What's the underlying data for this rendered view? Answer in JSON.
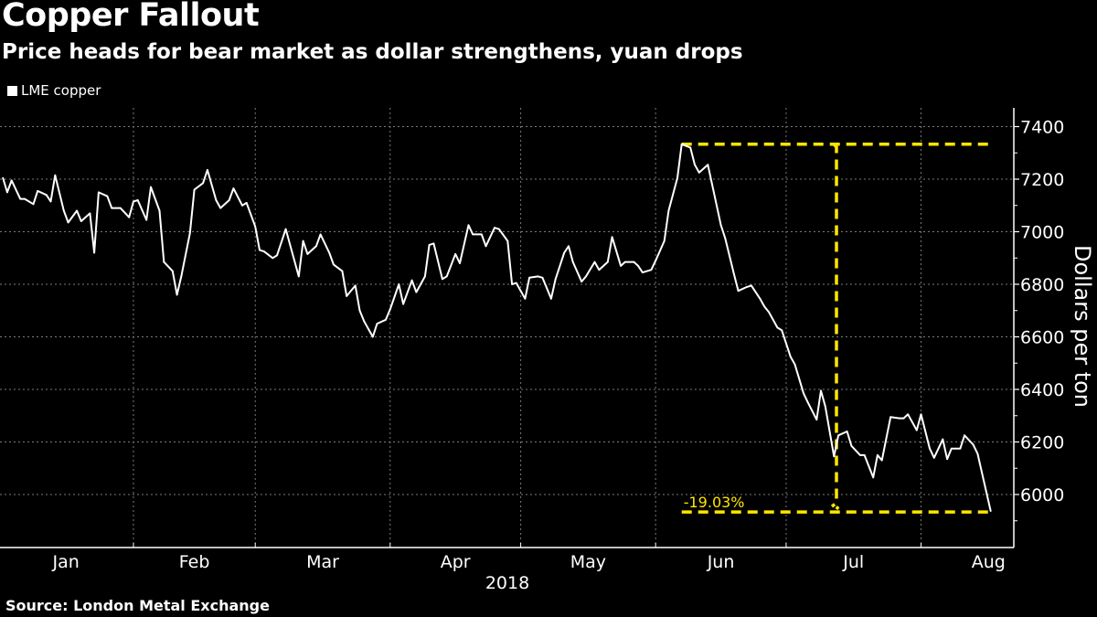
{
  "title": "Copper Fallout",
  "subtitle": "Price heads for bear market as dollar strengthens, yuan drops",
  "source": "Source: London Metal Exchange",
  "colors": {
    "background": "#000000",
    "line": "#ffffff",
    "annotation": "#ffe600",
    "grid": "#7a7a7a"
  },
  "chart_data": {
    "type": "line",
    "title": "Copper Fallout",
    "subtitle": "Price heads for bear market as dollar strengthens, yuan drops",
    "ylabel": "Dollars per ton",
    "xlabel": "2018",
    "ylim": [
      5800,
      7470
    ],
    "xlim": [
      "2018-01-01",
      "2018-08-22"
    ],
    "y_axis_position": "right",
    "yticks": [
      6000,
      6200,
      6400,
      6600,
      6800,
      7000,
      7200,
      7400
    ],
    "xtick_labels": [
      "Jan",
      "Feb",
      "Mar",
      "Apr",
      "May",
      "Jun",
      "Jul",
      "Aug"
    ],
    "grid": true,
    "legend_position": "top-left",
    "series": [
      {
        "name": "LME copper",
        "points": [
          [
            "2018-01-02",
            7205
          ],
          [
            "2018-01-03",
            7150
          ],
          [
            "2018-01-04",
            7195
          ],
          [
            "2018-01-06",
            7125
          ],
          [
            "2018-01-07",
            7125
          ],
          [
            "2018-01-09",
            7105
          ],
          [
            "2018-01-10",
            7155
          ],
          [
            "2018-01-12",
            7140
          ],
          [
            "2018-01-13",
            7115
          ],
          [
            "2018-01-14",
            7215
          ],
          [
            "2018-01-16",
            7080
          ],
          [
            "2018-01-17",
            7035
          ],
          [
            "2018-01-19",
            7080
          ],
          [
            "2018-01-20",
            7040
          ],
          [
            "2018-01-22",
            7070
          ],
          [
            "2018-01-23",
            6920
          ],
          [
            "2018-01-24",
            7150
          ],
          [
            "2018-01-26",
            7135
          ],
          [
            "2018-01-27",
            7090
          ],
          [
            "2018-01-29",
            7090
          ],
          [
            "2018-01-31",
            7055
          ],
          [
            "2018-02-01",
            7115
          ],
          [
            "2018-02-02",
            7120
          ],
          [
            "2018-02-04",
            7045
          ],
          [
            "2018-02-05",
            7170
          ],
          [
            "2018-02-07",
            7080
          ],
          [
            "2018-02-08",
            6885
          ],
          [
            "2018-02-10",
            6850
          ],
          [
            "2018-02-11",
            6760
          ],
          [
            "2018-02-12",
            6830
          ],
          [
            "2018-02-14",
            6995
          ],
          [
            "2018-02-15",
            7160
          ],
          [
            "2018-02-17",
            7185
          ],
          [
            "2018-02-18",
            7235
          ],
          [
            "2018-02-20",
            7120
          ],
          [
            "2018-02-21",
            7090
          ],
          [
            "2018-02-23",
            7120
          ],
          [
            "2018-02-24",
            7165
          ],
          [
            "2018-02-26",
            7100
          ],
          [
            "2018-02-27",
            7110
          ],
          [
            "2018-03-01",
            7020
          ],
          [
            "2018-03-02",
            6930
          ],
          [
            "2018-03-03",
            6925
          ],
          [
            "2018-03-05",
            6900
          ],
          [
            "2018-03-06",
            6910
          ],
          [
            "2018-03-08",
            7010
          ],
          [
            "2018-03-09",
            6950
          ],
          [
            "2018-03-11",
            6830
          ],
          [
            "2018-03-12",
            6965
          ],
          [
            "2018-03-13",
            6915
          ],
          [
            "2018-03-15",
            6945
          ],
          [
            "2018-03-16",
            6990
          ],
          [
            "2018-03-18",
            6920
          ],
          [
            "2018-03-19",
            6875
          ],
          [
            "2018-03-21",
            6850
          ],
          [
            "2018-03-22",
            6755
          ],
          [
            "2018-03-24",
            6795
          ],
          [
            "2018-03-25",
            6700
          ],
          [
            "2018-03-26",
            6660
          ],
          [
            "2018-03-28",
            6600
          ],
          [
            "2018-03-29",
            6650
          ],
          [
            "2018-03-31",
            6665
          ],
          [
            "2018-04-01",
            6705
          ],
          [
            "2018-04-03",
            6800
          ],
          [
            "2018-04-04",
            6725
          ],
          [
            "2018-04-06",
            6815
          ],
          [
            "2018-04-07",
            6770
          ],
          [
            "2018-04-09",
            6830
          ],
          [
            "2018-04-10",
            6950
          ],
          [
            "2018-04-11",
            6955
          ],
          [
            "2018-04-13",
            6820
          ],
          [
            "2018-04-14",
            6830
          ],
          [
            "2018-04-16",
            6915
          ],
          [
            "2018-04-17",
            6880
          ],
          [
            "2018-04-19",
            7025
          ],
          [
            "2018-04-20",
            6990
          ],
          [
            "2018-04-22",
            6990
          ],
          [
            "2018-04-23",
            6945
          ],
          [
            "2018-04-25",
            7015
          ],
          [
            "2018-04-26",
            7010
          ],
          [
            "2018-04-28",
            6965
          ],
          [
            "2018-04-29",
            6800
          ],
          [
            "2018-04-30",
            6805
          ],
          [
            "2018-05-02",
            6745
          ],
          [
            "2018-05-03",
            6825
          ],
          [
            "2018-05-05",
            6830
          ],
          [
            "2018-05-06",
            6825
          ],
          [
            "2018-05-08",
            6745
          ],
          [
            "2018-05-09",
            6820
          ],
          [
            "2018-05-11",
            6920
          ],
          [
            "2018-05-12",
            6945
          ],
          [
            "2018-05-13",
            6885
          ],
          [
            "2018-05-15",
            6810
          ],
          [
            "2018-05-16",
            6830
          ],
          [
            "2018-05-18",
            6885
          ],
          [
            "2018-05-19",
            6855
          ],
          [
            "2018-05-21",
            6885
          ],
          [
            "2018-05-22",
            6980
          ],
          [
            "2018-05-24",
            6870
          ],
          [
            "2018-05-25",
            6885
          ],
          [
            "2018-05-27",
            6885
          ],
          [
            "2018-05-28",
            6870
          ],
          [
            "2018-05-29",
            6845
          ],
          [
            "2018-05-31",
            6855
          ],
          [
            "2018-06-01",
            6890
          ],
          [
            "2018-06-03",
            6965
          ],
          [
            "2018-06-04",
            7080
          ],
          [
            "2018-06-06",
            7205
          ],
          [
            "2018-06-07",
            7333
          ],
          [
            "2018-06-09",
            7320
          ],
          [
            "2018-06-10",
            7255
          ],
          [
            "2018-06-11",
            7225
          ],
          [
            "2018-06-13",
            7255
          ],
          [
            "2018-06-14",
            7180
          ],
          [
            "2018-06-16",
            7025
          ],
          [
            "2018-06-17",
            6975
          ],
          [
            "2018-06-19",
            6840
          ],
          [
            "2018-06-20",
            6775
          ],
          [
            "2018-06-22",
            6790
          ],
          [
            "2018-06-23",
            6795
          ],
          [
            "2018-06-25",
            6745
          ],
          [
            "2018-06-26",
            6715
          ],
          [
            "2018-06-27",
            6695
          ],
          [
            "2018-06-29",
            6635
          ],
          [
            "2018-06-30",
            6625
          ],
          [
            "2018-07-02",
            6525
          ],
          [
            "2018-07-03",
            6495
          ],
          [
            "2018-07-05",
            6385
          ],
          [
            "2018-07-06",
            6350
          ],
          [
            "2018-07-08",
            6285
          ],
          [
            "2018-07-09",
            6395
          ],
          [
            "2018-07-10",
            6335
          ],
          [
            "2018-07-12",
            6145
          ],
          [
            "2018-07-13",
            6225
          ],
          [
            "2018-07-15",
            6240
          ],
          [
            "2018-07-16",
            6185
          ],
          [
            "2018-07-18",
            6150
          ],
          [
            "2018-07-19",
            6150
          ],
          [
            "2018-07-21",
            6065
          ],
          [
            "2018-07-22",
            6150
          ],
          [
            "2018-07-23",
            6130
          ],
          [
            "2018-07-25",
            6295
          ],
          [
            "2018-07-27",
            6290
          ],
          [
            "2018-07-28",
            6290
          ],
          [
            "2018-07-29",
            6305
          ],
          [
            "2018-07-31",
            6245
          ],
          [
            "2018-08-01",
            6305
          ],
          [
            "2018-08-03",
            6175
          ],
          [
            "2018-08-04",
            6140
          ],
          [
            "2018-08-06",
            6210
          ],
          [
            "2018-08-07",
            6135
          ],
          [
            "2018-08-08",
            6175
          ],
          [
            "2018-08-10",
            6175
          ],
          [
            "2018-08-11",
            6225
          ],
          [
            "2018-08-13",
            6190
          ],
          [
            "2018-08-14",
            6155
          ],
          [
            "2018-08-17",
            5937
          ]
        ]
      }
    ],
    "annotations": [
      {
        "label": "-19.03%",
        "from_value": 7333,
        "to_value": 5937,
        "from_date": "2018-06-07",
        "to_date": "2018-08-17",
        "style": "dashed-bracket"
      }
    ]
  }
}
